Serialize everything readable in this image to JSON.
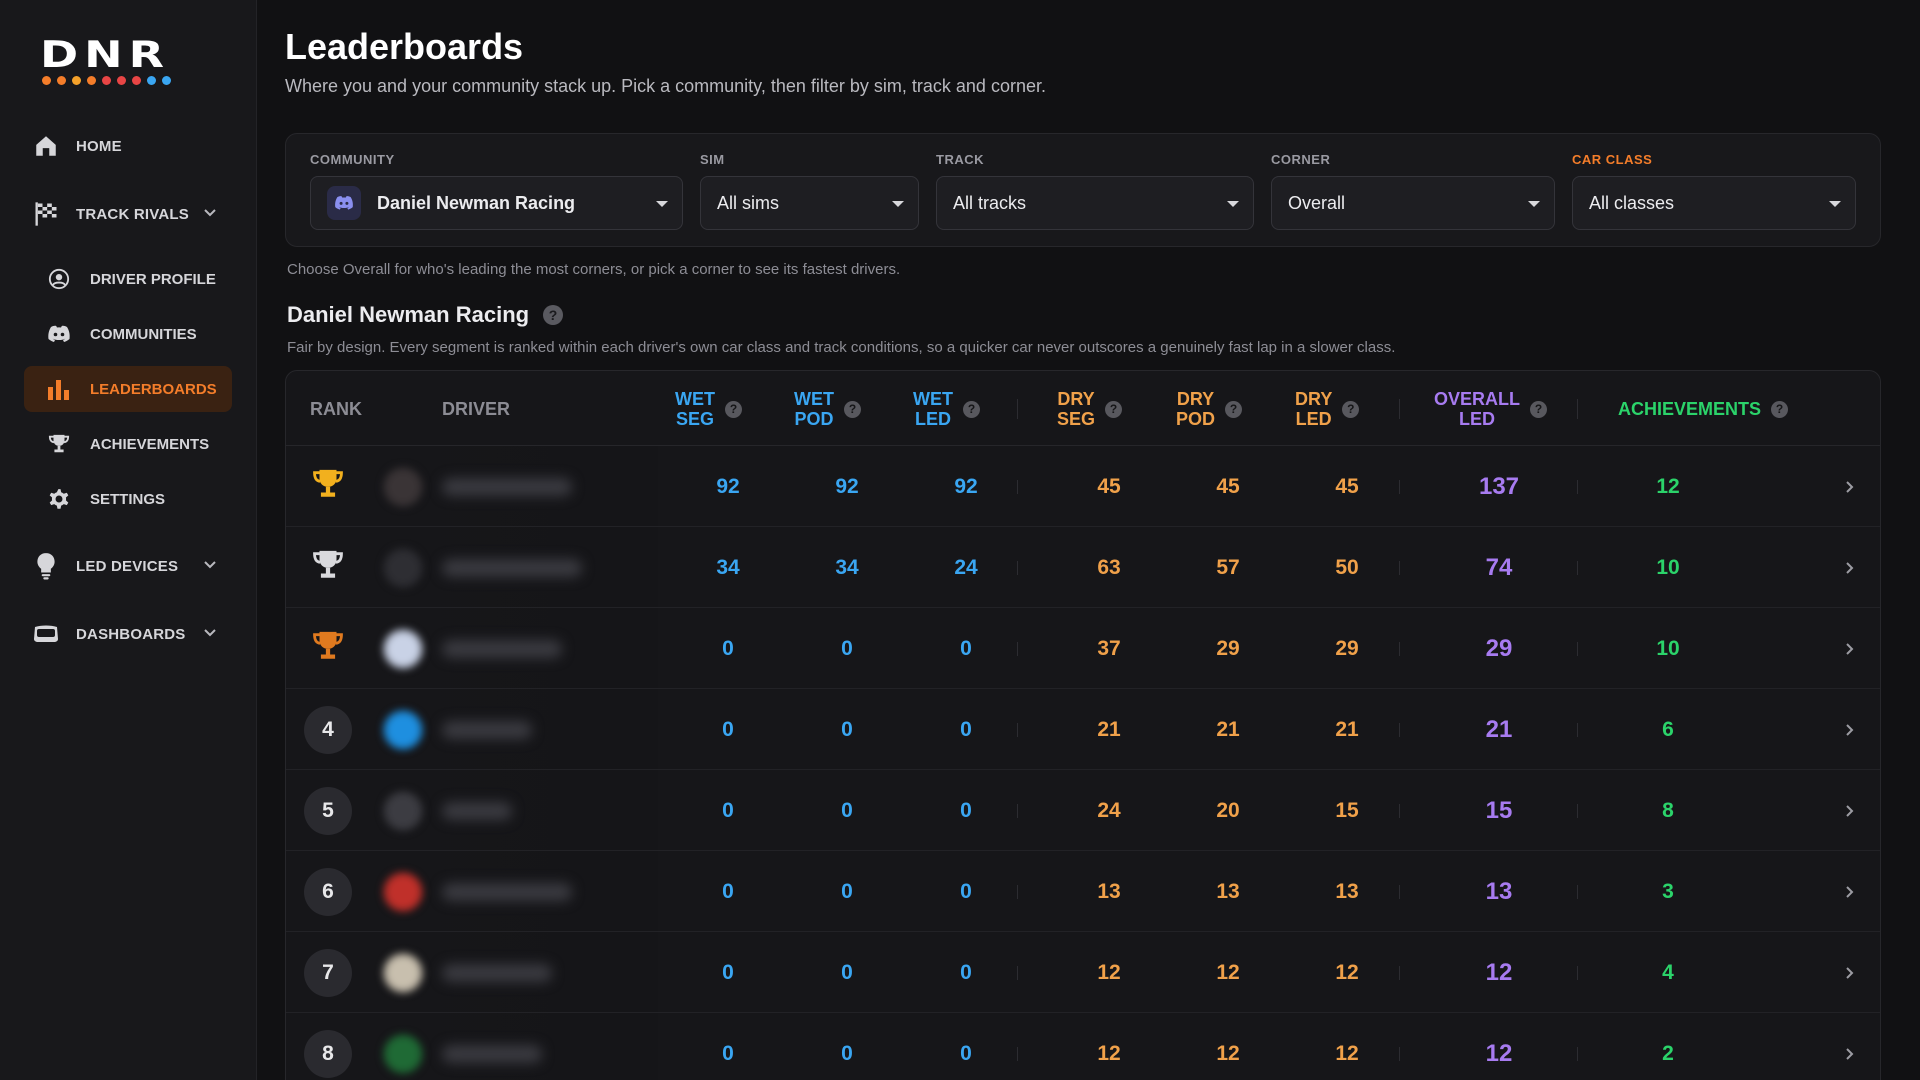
{
  "sidebar": {
    "logo": "DNR",
    "logo_dot_colors": [
      "#f47d2a",
      "#f47d2a",
      "#f4a12a",
      "#f47d2a",
      "#e84545",
      "#e84545",
      "#e84545",
      "#3aa6f2",
      "#3aa6f2"
    ],
    "items": [
      {
        "label": "HOME",
        "icon": "home-icon"
      },
      {
        "label": "TRACK RIVALS",
        "icon": "checkered-flag-icon",
        "expandable": true,
        "children": [
          {
            "label": "DRIVER PROFILE",
            "icon": "user-circle-icon"
          },
          {
            "label": "COMMUNITIES",
            "icon": "discord-icon"
          },
          {
            "label": "LEADERBOARDS",
            "icon": "bar-chart-icon",
            "active": true
          },
          {
            "label": "ACHIEVEMENTS",
            "icon": "trophy-icon"
          },
          {
            "label": "SETTINGS",
            "icon": "gear-icon"
          }
        ]
      },
      {
        "label": "LED DEVICES",
        "icon": "bulb-icon",
        "expandable": true
      },
      {
        "label": "DASHBOARDS",
        "icon": "dashboard-icon",
        "expandable": true
      }
    ]
  },
  "header": {
    "title": "Leaderboards",
    "subtitle": "Where you and your community stack up. Pick a community, then filter by sim, track and corner."
  },
  "filters": {
    "community": {
      "label": "COMMUNITY",
      "value": "Daniel Newman Racing"
    },
    "sim": {
      "label": "SIM",
      "value": "All sims"
    },
    "track": {
      "label": "TRACK",
      "value": "All tracks"
    },
    "corner": {
      "label": "CORNER",
      "value": "Overall"
    },
    "car_class": {
      "label": "CAR CLASS",
      "value": "All classes"
    },
    "hint": "Choose Overall for who's leading the most corners, or pick a corner to see its fastest drivers."
  },
  "section": {
    "title": "Daniel Newman Racing",
    "description": "Fair by design. Every segment is ranked within each driver's own car class and track conditions, so a quicker car never outscores a genuinely fast lap in a slower class."
  },
  "table": {
    "columns": {
      "rank": "RANK",
      "driver": "DRIVER",
      "wet_seg": [
        "WET",
        "SEG"
      ],
      "wet_pod": [
        "WET",
        "POD"
      ],
      "wet_led": [
        "WET",
        "LED"
      ],
      "dry_seg": [
        "DRY",
        "SEG"
      ],
      "dry_pod": [
        "DRY",
        "POD"
      ],
      "dry_led": [
        "DRY",
        "LED"
      ],
      "overall_led": [
        "OVERALL",
        "LED"
      ],
      "achievements": "ACHIEVEMENTS"
    },
    "rows": [
      {
        "rank": "1",
        "trophy": "gold",
        "avatar": "#3a3436",
        "wet_seg": "92",
        "wet_pod": "92",
        "wet_led": "92",
        "dry_seg": "45",
        "dry_pod": "45",
        "dry_led": "45",
        "overall_led": "137",
        "achievements": "12"
      },
      {
        "rank": "2",
        "trophy": "silver",
        "avatar": "#2e2e33",
        "wet_seg": "34",
        "wet_pod": "34",
        "wet_led": "24",
        "dry_seg": "63",
        "dry_pod": "57",
        "dry_led": "50",
        "overall_led": "74",
        "achievements": "10"
      },
      {
        "rank": "3",
        "trophy": "bronze",
        "avatar": "#c9d2e6",
        "wet_seg": "0",
        "wet_pod": "0",
        "wet_led": "0",
        "dry_seg": "37",
        "dry_pod": "29",
        "dry_led": "29",
        "overall_led": "29",
        "achievements": "10"
      },
      {
        "rank": "4",
        "trophy": null,
        "avatar": "#1e8fe0",
        "wet_seg": "0",
        "wet_pod": "0",
        "wet_led": "0",
        "dry_seg": "21",
        "dry_pod": "21",
        "dry_led": "21",
        "overall_led": "21",
        "achievements": "6"
      },
      {
        "rank": "5",
        "trophy": null,
        "avatar": "#3c3c42",
        "wet_seg": "0",
        "wet_pod": "0",
        "wet_led": "0",
        "dry_seg": "24",
        "dry_pod": "20",
        "dry_led": "15",
        "overall_led": "15",
        "achievements": "8"
      },
      {
        "rank": "6",
        "trophy": null,
        "avatar": "#c0302a",
        "wet_seg": "0",
        "wet_pod": "0",
        "wet_led": "0",
        "dry_seg": "13",
        "dry_pod": "13",
        "dry_led": "13",
        "overall_led": "13",
        "achievements": "3"
      },
      {
        "rank": "7",
        "trophy": null,
        "avatar": "#c8bfae",
        "wet_seg": "0",
        "wet_pod": "0",
        "wet_led": "0",
        "dry_seg": "12",
        "dry_pod": "12",
        "dry_led": "12",
        "overall_led": "12",
        "achievements": "4"
      },
      {
        "rank": "8",
        "trophy": null,
        "avatar": "#1f6a35",
        "wet_seg": "0",
        "wet_pod": "0",
        "wet_led": "0",
        "dry_seg": "12",
        "dry_pod": "12",
        "dry_led": "12",
        "overall_led": "12",
        "achievements": "2"
      }
    ]
  },
  "colors": {
    "accent": "#f47d2a",
    "wet": "#3aa6f2",
    "dry": "#f0a14a",
    "overall": "#a77bf0",
    "achievements": "#2bd36a",
    "gold": "#f2b01e",
    "silver": "#d9d9dd",
    "bronze": "#e07a1f"
  }
}
